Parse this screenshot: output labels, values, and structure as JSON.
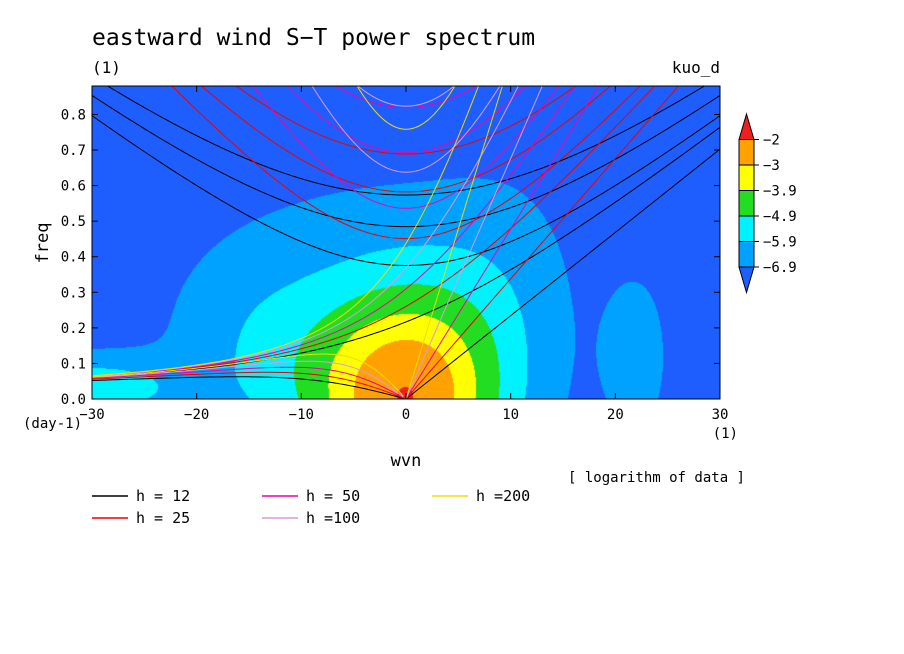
{
  "chart_data": {
    "type": "heatmap",
    "title": "eastward wind S−T power spectrum",
    "subtitle_left": "(1)",
    "subtitle_right": "kuo_d",
    "xlabel": "wvn",
    "ylabel": "freq",
    "x_unit": "(1)",
    "y_unit": "(day-1)",
    "note": "[ logarithm of data ]",
    "xlim": [
      -30,
      30
    ],
    "ylim": [
      0,
      0.88
    ],
    "x_ticks": [
      -30,
      -20,
      -10,
      0,
      10,
      20,
      30
    ],
    "y_ticks": [
      0.0,
      0.1,
      0.2,
      0.3,
      0.4,
      0.5,
      0.6,
      0.7,
      0.8
    ],
    "x_tick_labels": [
      "−30",
      "−20",
      "−10",
      "0",
      "10",
      "20",
      "30"
    ],
    "y_tick_labels": [
      "0.0",
      "0.1",
      "0.2",
      "0.3",
      "0.4",
      "0.5",
      "0.6",
      "0.7",
      "0.8"
    ],
    "colorbar": {
      "levels": [
        -2,
        -3,
        -3.9,
        -4.9,
        -5.9,
        -6.9
      ],
      "labels": [
        "−2",
        "−3",
        "−3.9",
        "−4.9",
        "−5.9",
        "−6.9"
      ],
      "colors": [
        "#ee1f1f",
        "#ffa100",
        "#ffff00",
        "#22dd22",
        "#00f2ff",
        "#00a2ff",
        "#1e5eff"
      ]
    },
    "fill_bands": [
      {
        "min": -2.0,
        "color": "#ee1f1f"
      },
      {
        "min": -3.0,
        "color": "#ffa100"
      },
      {
        "min": -3.9,
        "color": "#ffff00"
      },
      {
        "min": -4.9,
        "color": "#22dd22"
      },
      {
        "min": -5.9,
        "color": "#00f2ff"
      },
      {
        "min": -6.9,
        "color": "#00a2ff"
      },
      {
        "min": -100,
        "color": "#1e5eff"
      }
    ],
    "dispersion_curves": [
      {
        "label": "h = 12",
        "h": 12,
        "color": "#000000"
      },
      {
        "label": "h = 25",
        "h": 25,
        "color": "#ee0000"
      },
      {
        "label": "h = 50",
        "h": 50,
        "color": "#ee00aa"
      },
      {
        "label": "h =100",
        "h": 100,
        "color": "#dd99dd"
      },
      {
        "label": "h =200",
        "h": 200,
        "color": "#eedd00"
      }
    ]
  }
}
